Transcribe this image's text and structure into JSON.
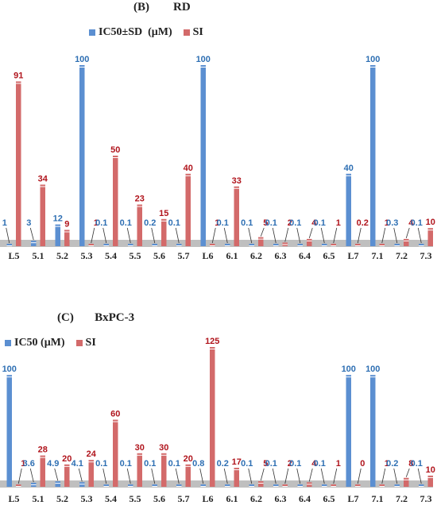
{
  "panels": [
    {
      "title": "(B)        RD",
      "legend": [
        "IC50±SD  (μM)",
        "SI"
      ]
    },
    {
      "title": "(C)       BxPC-3",
      "legend": [
        "IC50 (μM)",
        "SI"
      ]
    }
  ],
  "colors": {
    "ic50": "#5b8fd1",
    "si": "#d36a6a",
    "ic50_label": "#2e6fb3",
    "si_label": "#b0141c",
    "baseline": "#bfbfbf"
  },
  "chart_data": [
    {
      "type": "bar",
      "title": "(B) RD",
      "categories": [
        "L5",
        "5.1",
        "5.2",
        "5.3",
        "5.4",
        "5.5",
        "5.6",
        "5.7",
        "L6",
        "6.1",
        "6.2",
        "6.3",
        "6.4",
        "6.5",
        "L7",
        "7.1",
        "7.2",
        "7.3"
      ],
      "series": [
        {
          "name": "IC50±SD  (μM)",
          "values": [
            1,
            3,
            12,
            100,
            0.1,
            0.1,
            0.2,
            0.1,
            100,
            0.1,
            0.1,
            0.1,
            0.1,
            0.1,
            40,
            100,
            0.3,
            0.1
          ],
          "labels": [
            "1",
            "3",
            "12",
            "100",
            "0.1",
            "0.1",
            "0.2",
            "0.1",
            "100",
            "0.1",
            "0.1",
            "0.1",
            "0.1",
            "0.1",
            "40",
            "100",
            "0.3",
            "0.1"
          ]
        },
        {
          "name": "SI",
          "values": [
            91,
            34,
            9,
            1,
            50,
            23,
            15,
            40,
            1,
            33,
            5,
            2,
            4,
            1,
            0.2,
            1,
            4,
            10
          ],
          "labels": [
            "91",
            "34",
            "9",
            "1",
            "50",
            "23",
            "15",
            "40",
            "1",
            "33",
            "5",
            "2",
            "4",
            "1",
            "0.2",
            "1",
            "4",
            "10"
          ]
        }
      ],
      "ylim": [
        0,
        100
      ],
      "grid": false,
      "legend_position": "top"
    },
    {
      "type": "bar",
      "title": "(C) BxPC-3",
      "categories": [
        "L5",
        "5.1",
        "5.2",
        "5.3",
        "5.4",
        "5.5",
        "5.6",
        "5.7",
        "L6",
        "6.1",
        "6.2",
        "6.3",
        "6.4",
        "6.5",
        "L7",
        "7.1",
        "7.2",
        "7.3"
      ],
      "series": [
        {
          "name": "IC50 (μM)",
          "values": [
            100,
            3.6,
            4.9,
            4.1,
            0.1,
            0.1,
            0.1,
            0.1,
            0.8,
            0.2,
            0.1,
            0.1,
            0.1,
            0.1,
            100,
            100,
            0.2,
            0.1
          ],
          "labels": [
            "100",
            "3.6",
            "4.9",
            "4.1",
            "0.1",
            "0.1",
            "0.1",
            "0.1",
            "0.8",
            "0.2",
            "0.1",
            "0.1",
            "0.1",
            "0.1",
            "100",
            "100",
            "0.2",
            "0.1"
          ]
        },
        {
          "name": "SI",
          "values": [
            1,
            28,
            20,
            24,
            60,
            30,
            30,
            20,
            125,
            17,
            5,
            2,
            4,
            1,
            0,
            1,
            8,
            10
          ],
          "labels": [
            "1",
            "28",
            "20",
            "24",
            "60",
            "30",
            "30",
            "20",
            "125",
            "17",
            "5",
            "2",
            "4",
            "1",
            "0",
            "1",
            "8",
            "10"
          ]
        }
      ],
      "ylim": [
        0,
        125
      ],
      "grid": false,
      "legend_position": "top-left"
    }
  ]
}
